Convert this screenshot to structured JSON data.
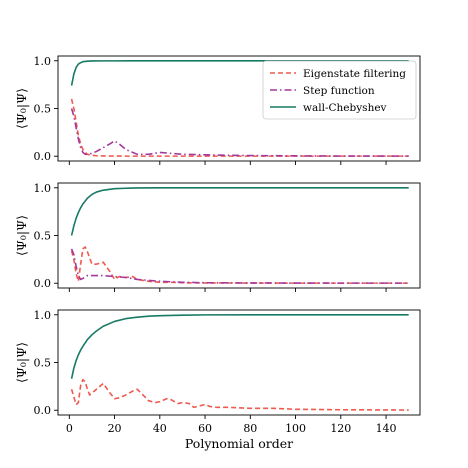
{
  "chart_data": [
    {
      "type": "line",
      "ylabel": "⟨Ψ₀|Ψ⟩",
      "xlabel": "",
      "xlim": [
        -5,
        155
      ],
      "ylim": [
        -0.05,
        1.05
      ],
      "xticks": [
        0,
        20,
        40,
        60,
        80,
        100,
        120,
        140
      ],
      "yticks": [
        0.0,
        0.5,
        1.0
      ],
      "ytick_labels": [
        "0.0",
        "0.5",
        "1.0"
      ],
      "show_xtick_labels": false,
      "legend": {
        "position": "top-right"
      },
      "series": [
        {
          "name": "Eigenstate filtering",
          "color": "#ef5a4e",
          "dash": "dashed",
          "x": [
            1,
            2,
            3,
            4,
            5,
            6,
            7,
            8,
            10,
            12,
            15,
            20,
            25,
            30,
            40,
            50,
            60,
            80,
            100,
            120,
            150
          ],
          "y": [
            0.6,
            0.5,
            0.36,
            0.22,
            0.13,
            0.07,
            0.04,
            0.02,
            0.01,
            0.005,
            0.003,
            0.002,
            0.001,
            0.001,
            0.001,
            0.001,
            0.001,
            0.001,
            0.001,
            0.001,
            0.001
          ]
        },
        {
          "name": "Step function",
          "color": "#a4389c",
          "dash": "dashdot",
          "x": [
            1,
            2,
            3,
            4,
            5,
            6,
            7,
            8,
            10,
            12,
            15,
            18,
            20,
            22,
            25,
            30,
            35,
            40,
            45,
            50,
            60,
            70,
            80,
            100,
            120,
            150
          ],
          "y": [
            0.5,
            0.42,
            0.3,
            0.18,
            0.09,
            0.04,
            0.02,
            0.02,
            0.03,
            0.05,
            0.09,
            0.13,
            0.16,
            0.13,
            0.07,
            0.02,
            0.02,
            0.04,
            0.03,
            0.02,
            0.015,
            0.01,
            0.007,
            0.004,
            0.002,
            0.001
          ]
        },
        {
          "name": "wall-Chebyshev",
          "color": "#177a64",
          "dash": "solid",
          "x": [
            1,
            2,
            3,
            4,
            5,
            6,
            8,
            10,
            15,
            20,
            40,
            60,
            80,
            100,
            120,
            150
          ],
          "y": [
            0.74,
            0.86,
            0.93,
            0.965,
            0.98,
            0.99,
            0.996,
            0.998,
            0.999,
            0.999,
            1.0,
            1.0,
            1.0,
            1.0,
            1.0,
            1.0
          ]
        }
      ]
    },
    {
      "type": "line",
      "ylabel": "⟨Ψ₀|Ψ⟩",
      "xlabel": "",
      "xlim": [
        -5,
        155
      ],
      "ylim": [
        -0.05,
        1.05
      ],
      "xticks": [
        0,
        20,
        40,
        60,
        80,
        100,
        120,
        140
      ],
      "yticks": [
        0.0,
        0.5,
        1.0
      ],
      "ytick_labels": [
        "0.0",
        "0.5",
        "1.0"
      ],
      "show_xtick_labels": false,
      "series": [
        {
          "name": "Eigenstate filtering",
          "color": "#ef5a4e",
          "dash": "dashed",
          "x": [
            1,
            2,
            3,
            4,
            5,
            6,
            7,
            8,
            10,
            12,
            15,
            18,
            20,
            22,
            25,
            28,
            30,
            35,
            40,
            45,
            50,
            60,
            80,
            100,
            120,
            150
          ],
          "y": [
            0.34,
            0.25,
            0.1,
            0.02,
            0.2,
            0.36,
            0.38,
            0.33,
            0.2,
            0.2,
            0.22,
            0.12,
            0.04,
            0.07,
            0.06,
            0.07,
            0.04,
            0.02,
            0.01,
            0.01,
            0.005,
            0.003,
            0.002,
            0.001,
            0.001,
            0.001
          ]
        },
        {
          "name": "Step function",
          "color": "#a4389c",
          "dash": "dashdot",
          "x": [
            1,
            2,
            3,
            4,
            5,
            6,
            8,
            10,
            15,
            20,
            25,
            30,
            35,
            40,
            50,
            60,
            80,
            100,
            120,
            150
          ],
          "y": [
            0.36,
            0.3,
            0.18,
            0.08,
            0.04,
            0.05,
            0.08,
            0.08,
            0.08,
            0.07,
            0.06,
            0.04,
            0.03,
            0.02,
            0.01,
            0.005,
            0.003,
            0.002,
            0.001,
            0.001
          ]
        },
        {
          "name": "wall-Chebyshev",
          "color": "#177a64",
          "dash": "solid",
          "x": [
            1,
            2,
            3,
            4,
            5,
            6,
            8,
            10,
            12,
            15,
            20,
            25,
            30,
            40,
            60,
            80,
            100,
            120,
            150
          ],
          "y": [
            0.5,
            0.6,
            0.68,
            0.74,
            0.79,
            0.83,
            0.89,
            0.93,
            0.955,
            0.975,
            0.99,
            0.995,
            0.998,
            1.0,
            1.0,
            1.0,
            1.0,
            1.0,
            1.0
          ]
        }
      ]
    },
    {
      "type": "line",
      "ylabel": "⟨Ψ₀|Ψ⟩",
      "xlabel": "Polynomial order",
      "xlim": [
        -5,
        155
      ],
      "ylim": [
        -0.05,
        1.05
      ],
      "xticks": [
        0,
        20,
        40,
        60,
        80,
        100,
        120,
        140
      ],
      "xtick_labels": [
        "0",
        "20",
        "40",
        "60",
        "80",
        "100",
        "120",
        "140"
      ],
      "yticks": [
        0.0,
        0.5,
        1.0
      ],
      "ytick_labels": [
        "0.0",
        "0.5",
        "1.0"
      ],
      "show_xtick_labels": true,
      "series": [
        {
          "name": "Eigenstate filtering",
          "color": "#ef5a4e",
          "dash": "dashed",
          "x": [
            1,
            2,
            3,
            4,
            5,
            6,
            7,
            8,
            9,
            10,
            12,
            15,
            18,
            20,
            22,
            25,
            28,
            30,
            33,
            35,
            38,
            40,
            43,
            45,
            48,
            50,
            53,
            55,
            60,
            62,
            65,
            70,
            80,
            90,
            100,
            120,
            150
          ],
          "y": [
            0.22,
            0.14,
            0.06,
            0.08,
            0.26,
            0.32,
            0.3,
            0.22,
            0.16,
            0.18,
            0.22,
            0.28,
            0.18,
            0.12,
            0.13,
            0.16,
            0.2,
            0.22,
            0.15,
            0.1,
            0.08,
            0.09,
            0.12,
            0.11,
            0.07,
            0.08,
            0.07,
            0.03,
            0.06,
            0.04,
            0.03,
            0.03,
            0.02,
            0.02,
            0.01,
            0.005,
            0.002
          ]
        },
        {
          "name": "wall-Chebyshev",
          "color": "#177a64",
          "dash": "solid",
          "x": [
            1,
            2,
            3,
            4,
            5,
            6,
            8,
            10,
            12,
            15,
            20,
            25,
            30,
            35,
            40,
            50,
            60,
            80,
            100,
            120,
            150
          ],
          "y": [
            0.33,
            0.44,
            0.52,
            0.58,
            0.63,
            0.67,
            0.74,
            0.79,
            0.83,
            0.88,
            0.93,
            0.96,
            0.975,
            0.985,
            0.99,
            0.996,
            0.999,
            1.0,
            1.0,
            1.0,
            1.0
          ]
        }
      ]
    }
  ]
}
